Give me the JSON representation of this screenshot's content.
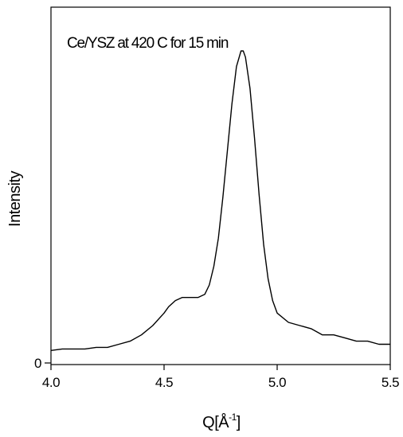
{
  "chart_data": {
    "type": "line",
    "title": "",
    "annotation": "Ce/YSZ at 420 C for 15 min",
    "xlabel": "Q[Å",
    "xlabel_sup": "-1",
    "xlabel_end": "]",
    "ylabel": "Intensity",
    "xlim": [
      4.0,
      5.5
    ],
    "ylim": [
      0,
      1.0
    ],
    "x_ticks": [
      4.0,
      4.5,
      5.0,
      5.5
    ],
    "x_tick_labels": [
      "4.0",
      "4.5",
      "5.0",
      "5.5"
    ],
    "y_ticks": [
      0
    ],
    "y_tick_labels": [
      "0"
    ],
    "grid": false,
    "line_color": "#000000",
    "series": [
      {
        "x": [
          4.0,
          4.05,
          4.1,
          4.15,
          4.2,
          4.25,
          4.3,
          4.35,
          4.4,
          4.45,
          4.5,
          4.52,
          4.55,
          4.58,
          4.6,
          4.62,
          4.65,
          4.68,
          4.7,
          4.72,
          4.74,
          4.76,
          4.78,
          4.8,
          4.82,
          4.84,
          4.85,
          4.86,
          4.88,
          4.9,
          4.92,
          4.94,
          4.96,
          4.98,
          5.0,
          5.05,
          5.1,
          5.15,
          5.2,
          5.25,
          5.3,
          5.35,
          5.4,
          5.45,
          5.5
        ],
        "y": [
          0.04,
          0.045,
          0.045,
          0.045,
          0.05,
          0.05,
          0.06,
          0.07,
          0.09,
          0.12,
          0.16,
          0.18,
          0.2,
          0.21,
          0.21,
          0.21,
          0.21,
          0.22,
          0.25,
          0.31,
          0.4,
          0.53,
          0.68,
          0.83,
          0.95,
          1.0,
          1.0,
          0.98,
          0.88,
          0.72,
          0.54,
          0.38,
          0.27,
          0.2,
          0.16,
          0.13,
          0.12,
          0.11,
          0.09,
          0.09,
          0.08,
          0.07,
          0.07,
          0.06,
          0.06
        ]
      }
    ]
  }
}
